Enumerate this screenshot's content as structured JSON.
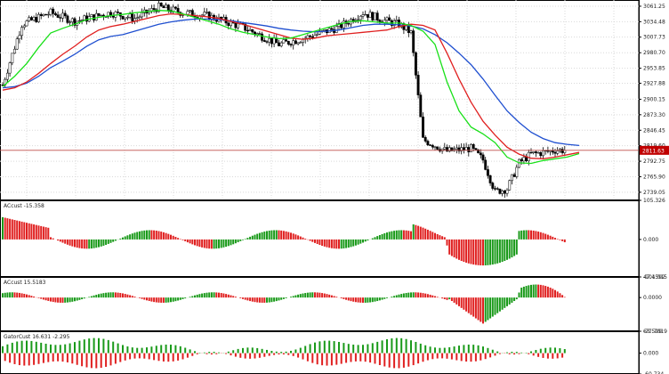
{
  "chart_data": {
    "type": "candlestick",
    "symbol_price": {
      "current_price_label": "2811.63",
      "y_ticks": [
        "3061.25",
        "3034.48",
        "3007.73",
        "2980.70",
        "2953.85",
        "2927.88",
        "2900.15",
        "2873.30",
        "2846.45",
        "2819.60",
        "2792.75",
        "2765.90",
        "2739.05"
      ],
      "y_range": [
        2725,
        3072
      ],
      "current_price": 2811.63,
      "colors": {
        "bull": "#ffffff",
        "bear": "#000000",
        "grid": "#d9d9d9",
        "price_line": "#c0504d",
        "price_box": "#c00000"
      },
      "alligator": {
        "jaw_color": "#1f4fd0",
        "teeth_color": "#e02020",
        "lips_color": "#18e018",
        "jaw": [
          [
            0,
            2920
          ],
          [
            5,
            2922
          ],
          [
            10,
            2928
          ],
          [
            15,
            2940
          ],
          [
            20,
            2955
          ],
          [
            25,
            2966
          ],
          [
            30,
            2978
          ],
          [
            35,
            2992
          ],
          [
            40,
            3003
          ],
          [
            45,
            3009
          ],
          [
            50,
            3012
          ],
          [
            55,
            3018
          ],
          [
            60,
            3024
          ],
          [
            65,
            3030
          ],
          [
            70,
            3034
          ],
          [
            75,
            3037
          ],
          [
            80,
            3039
          ],
          [
            85,
            3039
          ],
          [
            90,
            3038
          ],
          [
            95,
            3036
          ],
          [
            100,
            3033
          ],
          [
            105,
            3030
          ],
          [
            110,
            3027
          ],
          [
            115,
            3023
          ],
          [
            120,
            3020
          ],
          [
            125,
            3018
          ],
          [
            130,
            3017
          ],
          [
            135,
            3018
          ],
          [
            140,
            3020
          ],
          [
            145,
            3024
          ],
          [
            150,
            3028
          ],
          [
            155,
            3030
          ],
          [
            160,
            3030
          ],
          [
            165,
            3029
          ],
          [
            170,
            3027
          ],
          [
            175,
            3022
          ],
          [
            180,
            3012
          ],
          [
            185,
            2998
          ],
          [
            190,
            2980
          ],
          [
            195,
            2960
          ],
          [
            200,
            2935
          ],
          [
            205,
            2907
          ],
          [
            210,
            2880
          ],
          [
            215,
            2860
          ],
          [
            220,
            2843
          ],
          [
            225,
            2832
          ],
          [
            230,
            2825
          ],
          [
            235,
            2822
          ],
          [
            240,
            2820
          ]
        ],
        "teeth": [
          [
            0,
            2916
          ],
          [
            5,
            2920
          ],
          [
            10,
            2930
          ],
          [
            15,
            2945
          ],
          [
            20,
            2962
          ],
          [
            25,
            2978
          ],
          [
            30,
            2992
          ],
          [
            35,
            3008
          ],
          [
            40,
            3020
          ],
          [
            45,
            3026
          ],
          [
            50,
            3030
          ],
          [
            55,
            3035
          ],
          [
            60,
            3040
          ],
          [
            65,
            3045
          ],
          [
            70,
            3048
          ],
          [
            75,
            3047
          ],
          [
            80,
            3045
          ],
          [
            85,
            3043
          ],
          [
            90,
            3040
          ],
          [
            95,
            3035
          ],
          [
            100,
            3030
          ],
          [
            105,
            3024
          ],
          [
            110,
            3018
          ],
          [
            115,
            3012
          ],
          [
            120,
            3006
          ],
          [
            125,
            3004
          ],
          [
            130,
            3006
          ],
          [
            135,
            3010
          ],
          [
            140,
            3012
          ],
          [
            145,
            3014
          ],
          [
            150,
            3016
          ],
          [
            155,
            3018
          ],
          [
            160,
            3020
          ],
          [
            165,
            3026
          ],
          [
            170,
            3030
          ],
          [
            175,
            3028
          ],
          [
            180,
            3020
          ],
          [
            185,
            2980
          ],
          [
            190,
            2935
          ],
          [
            195,
            2895
          ],
          [
            200,
            2862
          ],
          [
            205,
            2838
          ],
          [
            210,
            2817
          ],
          [
            215,
            2805
          ],
          [
            220,
            2798
          ],
          [
            225,
            2797
          ],
          [
            230,
            2800
          ],
          [
            235,
            2804
          ],
          [
            240,
            2808
          ]
        ],
        "lips": [
          [
            0,
            2922
          ],
          [
            5,
            2940
          ],
          [
            10,
            2962
          ],
          [
            15,
            2990
          ],
          [
            20,
            3015
          ],
          [
            25,
            3023
          ],
          [
            30,
            3030
          ],
          [
            35,
            3038
          ],
          [
            40,
            3042
          ],
          [
            45,
            3045
          ],
          [
            50,
            3047
          ],
          [
            55,
            3050
          ],
          [
            60,
            3052
          ],
          [
            65,
            3054
          ],
          [
            70,
            3053
          ],
          [
            75,
            3048
          ],
          [
            80,
            3042
          ],
          [
            85,
            3036
          ],
          [
            90,
            3030
          ],
          [
            95,
            3022
          ],
          [
            100,
            3016
          ],
          [
            105,
            3012
          ],
          [
            110,
            3008
          ],
          [
            115,
            3005
          ],
          [
            120,
            3006
          ],
          [
            125,
            3012
          ],
          [
            130,
            3018
          ],
          [
            135,
            3024
          ],
          [
            140,
            3030
          ],
          [
            145,
            3035
          ],
          [
            150,
            3036
          ],
          [
            155,
            3034
          ],
          [
            160,
            3032
          ],
          [
            165,
            3032
          ],
          [
            170,
            3028
          ],
          [
            175,
            3018
          ],
          [
            180,
            2995
          ],
          [
            185,
            2930
          ],
          [
            190,
            2880
          ],
          [
            195,
            2852
          ],
          [
            200,
            2840
          ],
          [
            205,
            2825
          ],
          [
            210,
            2800
          ],
          [
            215,
            2790
          ],
          [
            220,
            2789
          ],
          [
            225,
            2794
          ],
          [
            230,
            2797
          ],
          [
            235,
            2800
          ],
          [
            240,
            2806
          ]
        ]
      }
    },
    "ac_pane": {
      "label": "ACcust -15.358",
      "y_ticks": [
        "105.326",
        "0.000",
        "-101.015"
      ],
      "y_range": [
        -101.015,
        105.326
      ]
    },
    "ac2_pane": {
      "label": "ACcust 15.5183",
      "y_ticks": [
        "47.4592",
        "0.0000",
        "-77.7019"
      ],
      "y_range": [
        -77.7019,
        47.4592
      ]
    },
    "gator_pane": {
      "label": "GatorCust 16.631 -2.295",
      "y_ticks": [
        "63.599",
        "0.000",
        "-60.734"
      ],
      "y_range": [
        -60.734,
        63.599
      ]
    }
  }
}
